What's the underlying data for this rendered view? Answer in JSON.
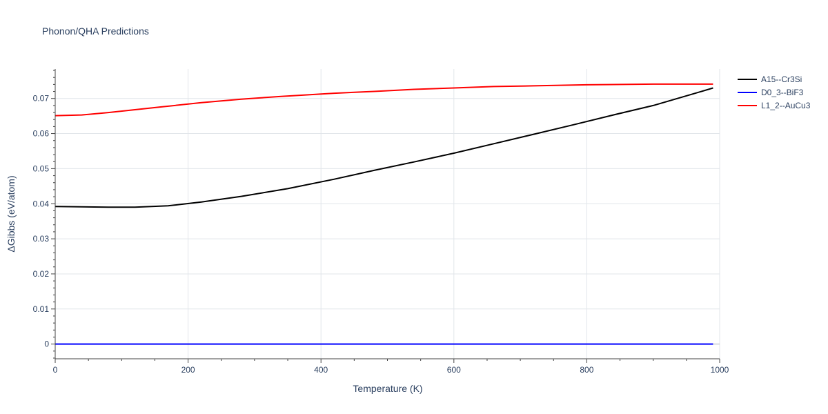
{
  "chart_data": {
    "type": "line",
    "title": "Phonon/QHA Predictions",
    "xlabel": "Temperature (K)",
    "ylabel": "ΔGibbs (eV/atom)",
    "xlim": [
      0,
      1000
    ],
    "ylim": [
      -0.0042,
      0.0784
    ],
    "x_ticks": [
      0,
      200,
      400,
      600,
      800,
      1000
    ],
    "x_tick_labels": [
      "0",
      "200",
      "400",
      "600",
      "800",
      "1000"
    ],
    "y_ticks": [
      0,
      0.01,
      0.02,
      0.03,
      0.04,
      0.05,
      0.06,
      0.07
    ],
    "y_tick_labels": [
      "0",
      "0.01",
      "0.02",
      "0.03",
      "0.04",
      "0.05",
      "0.06",
      "0.07"
    ],
    "grid": true,
    "legend_position": "top-right",
    "series": [
      {
        "name": "A15--Cr3Si",
        "color": "#000000",
        "x": [
          0,
          40,
          80,
          120,
          170,
          220,
          280,
          350,
          420,
          480,
          540,
          600,
          660,
          720,
          780,
          840,
          900,
          960,
          990
        ],
        "y": [
          0.0392,
          0.0391,
          0.039,
          0.039,
          0.0394,
          0.0405,
          0.0421,
          0.0443,
          0.047,
          0.0495,
          0.0519,
          0.0544,
          0.0571,
          0.0598,
          0.0625,
          0.0653,
          0.068,
          0.0713,
          0.073
        ]
      },
      {
        "name": "D0_3--BiF3",
        "color": "#0000ff",
        "x": [
          0,
          990
        ],
        "y": [
          0,
          0
        ]
      },
      {
        "name": "L1_2--AuCu3",
        "color": "#ff0000",
        "x": [
          0,
          20,
          40,
          80,
          120,
          160,
          220,
          280,
          340,
          420,
          480,
          540,
          600,
          660,
          720,
          800,
          900,
          990
        ],
        "y": [
          0.0651,
          0.0652,
          0.0653,
          0.066,
          0.0668,
          0.0676,
          0.0688,
          0.0698,
          0.0706,
          0.0715,
          0.072,
          0.0726,
          0.073,
          0.0734,
          0.0736,
          0.0739,
          0.0741,
          0.0741
        ]
      }
    ]
  }
}
